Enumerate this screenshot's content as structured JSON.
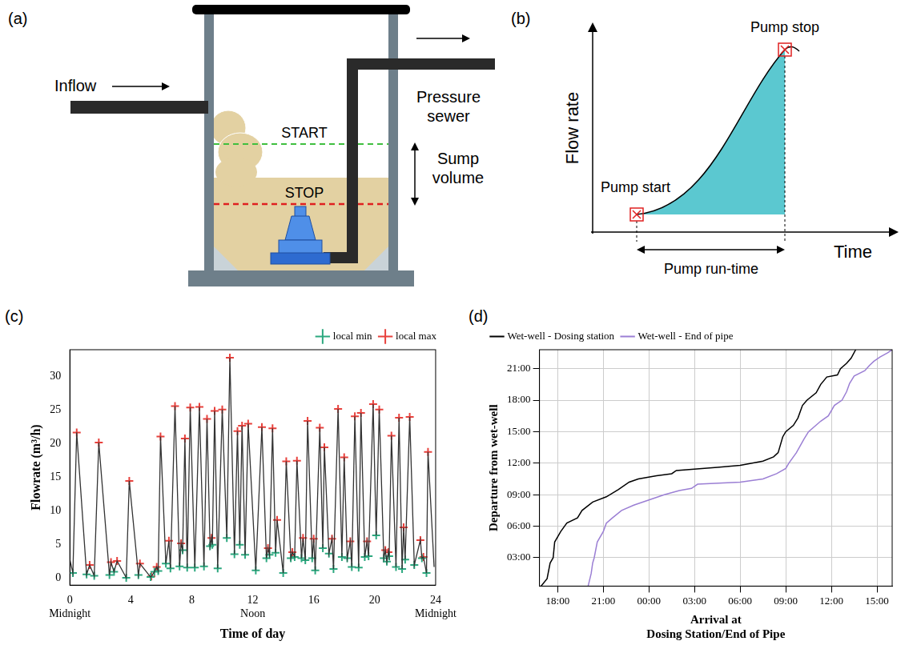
{
  "panel_a": {
    "panel": "(a)",
    "inflow": "Inflow",
    "outflow": "Pressure sewer",
    "start": "START",
    "stop": "STOP",
    "sump": "Sump volume"
  },
  "panel_b": {
    "panel": "(b)",
    "y_label": "Flow rate",
    "x_label": "Time",
    "start": "Pump start",
    "stop": "Pump stop",
    "run_time": "Pump run-time"
  },
  "chart_data": [
    {
      "panel": "(c)",
      "type": "line",
      "x_label": "Time of day",
      "y_label": "Flowrate (m³/h)",
      "xlim": [
        0,
        24
      ],
      "xticks": [
        {
          "value": 0,
          "label": "0\nMidnight"
        },
        4,
        8,
        {
          "value": 12,
          "label": "12\nNoon"
        },
        16,
        20,
        {
          "value": 24,
          "label": "24\nMidnight"
        }
      ],
      "ylim": [
        -1,
        34
      ],
      "yticks": [
        0,
        5,
        10,
        15,
        20,
        25,
        30
      ],
      "grid": false,
      "legend": "upper right",
      "series": [
        {
          "type": "line",
          "color": "#333333",
          "x": [
            0,
            0.2,
            0.45,
            1.1,
            1.3,
            1.6,
            1.9,
            2.6,
            2.7,
            2.9,
            3.1,
            3.7,
            3.9,
            4.5,
            4.6,
            5.3,
            5.35,
            5.55,
            5.7,
            5.8,
            5.95,
            6.3,
            6.5,
            6.6,
            6.9,
            7.2,
            7.3,
            7.4,
            7.55,
            7.7,
            7.9,
            8.2,
            8.5,
            8.8,
            9.0,
            9.2,
            9.3,
            9.35,
            9.5,
            9.7,
            10.0,
            10.3,
            10.5,
            10.8,
            11.0,
            11.15,
            11.3,
            11.5,
            11.7,
            12.2,
            12.6,
            12.9,
            13.0,
            13.1,
            13.3,
            13.5,
            13.6,
            14.0,
            14.2,
            14.5,
            14.6,
            14.75,
            14.9,
            15.2,
            15.3,
            15.45,
            15.6,
            15.9,
            16.0,
            16.1,
            16.4,
            16.6,
            16.7,
            17.0,
            17.2,
            17.3,
            17.6,
            17.85,
            18.0,
            18.2,
            18.4,
            18.5,
            18.7,
            18.95,
            19.1,
            19.35,
            19.5,
            19.6,
            19.9,
            20.1,
            20.3,
            20.6,
            20.7,
            20.8,
            20.9,
            20.95,
            21.1,
            21.4,
            21.6,
            21.8,
            21.9,
            22.0,
            22.3,
            22.6,
            23.0,
            23.1,
            23.2,
            23.4,
            23.5,
            23.9
          ],
          "values": [
            2.8,
            0.8,
            21.7,
            0.6,
            2.0,
            0.4,
            20.2,
            0.5,
            2.4,
            1.0,
            2.6,
            0.1,
            14.5,
            0.5,
            2.2,
            0.2,
            0.3,
            1.0,
            1.7,
            1.1,
            21.1,
            2.2,
            5.6,
            1.5,
            25.6,
            1.8,
            5.2,
            4.2,
            20.8,
            1.6,
            25.4,
            1.6,
            25.5,
            1.8,
            23.7,
            4.8,
            6.0,
            5.0,
            24.9,
            1.5,
            25.1,
            6.0,
            32.8,
            3.6,
            21.9,
            5.0,
            22.7,
            3.5,
            23.0,
            1.2,
            22.5,
            3.0,
            4.5,
            3.5,
            22.3,
            3.8,
            8.7,
            0.8,
            17.4,
            3.0,
            3.9,
            3.2,
            17.5,
            3.0,
            6.0,
            2.7,
            23.4,
            3.0,
            5.9,
            1.2,
            22.4,
            4.5,
            19.5,
            3.7,
            5.9,
            1.4,
            25.2,
            3.2,
            18.0,
            3.0,
            5.5,
            1.7,
            24.1,
            1.6,
            24.6,
            3.2,
            5.5,
            3.3,
            25.9,
            6.4,
            25.1,
            3.0,
            4.2,
            2.5,
            3.9,
            3.3,
            21.2,
            1.7,
            23.9,
            1.4,
            7.6,
            2.8,
            24.0,
            2.0,
            5.7,
            3.0,
            3.2,
            0.8,
            18.8,
            1.7
          ]
        },
        {
          "name": "local min",
          "type": "scatter",
          "marker": "plus",
          "color": "#2ca87f",
          "x": [
            0.2,
            1.1,
            1.6,
            2.6,
            2.9,
            3.7,
            4.5,
            5.3,
            5.55,
            5.8,
            6.3,
            6.6,
            7.2,
            7.4,
            7.7,
            8.2,
            8.8,
            9.2,
            9.35,
            9.7,
            10.3,
            10.8,
            11.15,
            11.5,
            12.2,
            12.9,
            13.1,
            13.5,
            14.0,
            14.5,
            14.75,
            15.2,
            15.45,
            15.9,
            16.1,
            16.6,
            17.0,
            17.3,
            17.85,
            18.2,
            18.5,
            18.95,
            19.35,
            19.6,
            20.1,
            20.6,
            20.8,
            20.95,
            21.4,
            21.8,
            22.0,
            22.6,
            23.1,
            23.4
          ],
          "values": [
            0.8,
            0.6,
            0.4,
            0.5,
            1.0,
            0.1,
            0.5,
            0.2,
            1.0,
            1.1,
            2.2,
            1.5,
            1.8,
            4.2,
            1.6,
            1.6,
            1.8,
            4.8,
            5.0,
            1.5,
            6.0,
            3.6,
            5.0,
            3.5,
            1.2,
            3.0,
            3.5,
            3.8,
            0.8,
            3.0,
            3.2,
            3.0,
            2.7,
            3.0,
            1.2,
            4.5,
            3.7,
            1.4,
            3.2,
            3.0,
            1.7,
            1.6,
            3.2,
            3.3,
            6.4,
            3.0,
            2.5,
            3.3,
            1.7,
            1.4,
            2.8,
            2.0,
            3.0,
            0.8
          ]
        },
        {
          "name": "local max",
          "type": "scatter",
          "marker": "plus",
          "color": "#e8413c",
          "x": [
            0.45,
            1.3,
            1.9,
            2.7,
            3.1,
            3.9,
            4.6,
            5.35,
            5.7,
            5.95,
            6.5,
            6.9,
            7.3,
            7.55,
            7.9,
            8.5,
            9.0,
            9.3,
            9.5,
            10.0,
            10.5,
            11.0,
            11.3,
            11.7,
            12.6,
            13.0,
            13.3,
            13.6,
            14.2,
            14.6,
            14.9,
            15.3,
            15.6,
            16.0,
            16.4,
            16.7,
            17.2,
            17.6,
            18.0,
            18.4,
            18.7,
            19.1,
            19.5,
            19.9,
            20.3,
            20.7,
            20.9,
            21.1,
            21.6,
            21.9,
            22.3,
            23.0,
            23.2,
            23.5
          ],
          "values": [
            21.7,
            2.0,
            20.2,
            2.4,
            2.6,
            14.5,
            2.2,
            0.3,
            1.7,
            21.1,
            5.6,
            25.6,
            5.2,
            20.8,
            25.4,
            25.5,
            23.7,
            6.0,
            24.9,
            25.1,
            32.8,
            21.9,
            22.7,
            23.0,
            22.5,
            4.5,
            22.3,
            8.7,
            17.4,
            3.9,
            17.5,
            6.0,
            23.4,
            5.9,
            22.4,
            19.5,
            5.9,
            25.2,
            18.0,
            5.5,
            24.1,
            24.6,
            5.5,
            25.9,
            25.1,
            4.2,
            3.9,
            21.2,
            23.9,
            7.6,
            24.0,
            5.7,
            3.2,
            18.8
          ]
        }
      ]
    },
    {
      "panel": "(d)",
      "type": "line",
      "x_label": "Arrival at\nDosing Station/End of Pipe",
      "y_label": "Departure from wet-well",
      "xlim": [
        16.8,
        40
      ],
      "xticks": [
        {
          "value": 18,
          "label": "18:00"
        },
        {
          "value": 21,
          "label": "21:00"
        },
        {
          "value": 24,
          "label": "00:00"
        },
        {
          "value": 27,
          "label": "03:00"
        },
        {
          "value": 30,
          "label": "06:00"
        },
        {
          "value": 33,
          "label": "09:00"
        },
        {
          "value": 36,
          "label": "12:00"
        },
        {
          "value": 39,
          "label": "15:00"
        }
      ],
      "ylim": [
        0.3,
        22.8
      ],
      "yticks": [
        {
          "value": 3,
          "label": "03:00"
        },
        {
          "value": 6,
          "label": "06:00"
        },
        {
          "value": 9,
          "label": "09:00"
        },
        {
          "value": 12,
          "label": "12:00"
        },
        {
          "value": 15,
          "label": "15:00"
        },
        {
          "value": 18,
          "label": "18:00"
        },
        {
          "value": 21,
          "label": "21:00"
        }
      ],
      "grid": true,
      "legend": "upper left",
      "series": [
        {
          "name": "Wet-well - Dosing station",
          "color": "#000000",
          "x": [
            16.9,
            17.3,
            17.5,
            17.7,
            17.8,
            18.2,
            18.6,
            19.3,
            19.6,
            20.3,
            21.2,
            22.0,
            22.7,
            23.3,
            24.5,
            25.5,
            25.8,
            28.5,
            30.0,
            31.5,
            32.2,
            32.5,
            32.8,
            33.0,
            33.5,
            33.8,
            34.1,
            34.4,
            35.0,
            35.3,
            35.7,
            36.4,
            36.6,
            37.0,
            37.3,
            37.6
          ],
          "values": [
            0.3,
            1.0,
            2.5,
            3.0,
            4.5,
            5.5,
            6.3,
            6.8,
            7.5,
            8.3,
            8.8,
            9.5,
            10.2,
            10.5,
            10.8,
            11.0,
            11.3,
            11.6,
            11.8,
            12.2,
            12.6,
            13.0,
            14.5,
            15.0,
            15.6,
            16.3,
            17.5,
            18.0,
            18.7,
            19.5,
            20.2,
            20.4,
            21.0,
            21.5,
            22.0,
            22.8
          ]
        },
        {
          "name": "Wet-well - End of pipe",
          "color": "#9b7fd4",
          "x": [
            20.0,
            20.2,
            20.3,
            20.4,
            20.6,
            21.0,
            21.2,
            21.6,
            22.2,
            23.0,
            24.0,
            25.0,
            26.0,
            26.8,
            27.2,
            30.0,
            31.5,
            32.4,
            33.0,
            33.2,
            33.7,
            34.2,
            34.5,
            35.3,
            35.8,
            36.2,
            36.7,
            37.0,
            37.2,
            37.5,
            38.2,
            38.5,
            38.8,
            39.2,
            39.7,
            40.0
          ],
          "values": [
            0.3,
            1.5,
            2.5,
            3.0,
            4.5,
            5.5,
            6.3,
            6.8,
            7.5,
            8.0,
            8.5,
            9.0,
            9.4,
            9.6,
            10.0,
            10.2,
            10.5,
            11.0,
            11.5,
            12.0,
            13.0,
            14.3,
            15.0,
            16.0,
            16.5,
            17.5,
            18.0,
            18.8,
            19.6,
            20.3,
            20.8,
            21.3,
            21.7,
            22.1,
            22.5,
            22.8
          ]
        }
      ]
    }
  ]
}
